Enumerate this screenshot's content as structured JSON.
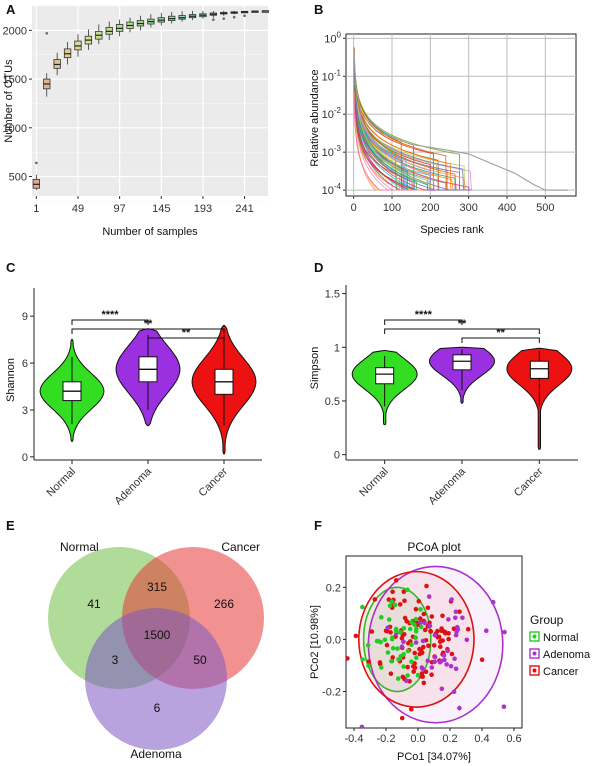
{
  "chart_data": [
    {
      "panel": "A",
      "type": "box",
      "xlabel": "Number of samples",
      "ylabel": "Number of OTUs",
      "xticks": [
        "1",
        "49",
        "97",
        "145",
        "193",
        "241"
      ],
      "yticks": [
        500,
        1000,
        1500,
        2000
      ],
      "ylim": [
        300,
        2250
      ],
      "grid": true,
      "x": [
        1,
        13,
        25,
        37,
        49,
        61,
        73,
        85,
        97,
        109,
        121,
        133,
        145,
        157,
        169,
        181,
        193,
        205,
        217,
        229,
        241,
        253,
        265
      ],
      "median": [
        420,
        1450,
        1650,
        1760,
        1840,
        1900,
        1950,
        1990,
        2020,
        2050,
        2070,
        2090,
        2105,
        2120,
        2130,
        2145,
        2155,
        2165,
        2175,
        2182,
        2190,
        2196,
        2200
      ],
      "q1": [
        380,
        1400,
        1610,
        1720,
        1800,
        1860,
        1910,
        1960,
        1990,
        2020,
        2045,
        2065,
        2085,
        2100,
        2115,
        2130,
        2140,
        2155,
        2168,
        2177,
        2186,
        2193,
        2200
      ],
      "q3": [
        470,
        1500,
        1700,
        1810,
        1890,
        1940,
        1990,
        2030,
        2060,
        2085,
        2100,
        2115,
        2130,
        2145,
        2152,
        2162,
        2170,
        2178,
        2185,
        2190,
        2195,
        2199,
        2200
      ],
      "min": [
        360,
        1320,
        1540,
        1650,
        1730,
        1800,
        1860,
        1900,
        1940,
        1980,
        2000,
        2030,
        2050,
        2070,
        2090,
        2105,
        2120,
        2130,
        2150,
        2165,
        2175,
        2188,
        2200
      ],
      "max": [
        520,
        1560,
        1770,
        1880,
        1960,
        2010,
        2060,
        2090,
        2110,
        2130,
        2150,
        2165,
        2180,
        2190,
        2195,
        2200,
        2200,
        2200,
        2200,
        2200,
        2200,
        2200,
        2200
      ],
      "outliers": [
        [
          13,
          1970
        ],
        [
          1,
          640
        ],
        [
          205,
          2110
        ],
        [
          217,
          2120
        ],
        [
          229,
          2135
        ],
        [
          241,
          2150
        ]
      ]
    },
    {
      "panel": "B",
      "type": "line",
      "xlabel": "Species rank",
      "ylabel": "Relative abundance",
      "xticks": [
        0,
        100,
        200,
        300,
        400,
        500
      ],
      "yticks": [
        "10^-4",
        "10^-3",
        "10^-2",
        "10^-1",
        "10^0"
      ],
      "xlim": [
        -20,
        580
      ],
      "ylim": [
        7e-05,
        1.3
      ],
      "yscale": "log",
      "grid": true
    },
    {
      "panel": "C",
      "type": "violin",
      "ylabel": "Shannon",
      "categories": [
        "Normal",
        "Adenoma",
        "Cancer"
      ],
      "yticks": [
        0,
        3,
        6,
        9
      ],
      "ylim": [
        -0.2,
        10.8
      ],
      "colors": [
        "#33dd22",
        "#9b30e0",
        "#ee1111"
      ],
      "median": [
        4.2,
        5.6,
        4.8
      ],
      "q1": [
        3.6,
        4.8,
        4.0
      ],
      "q3": [
        4.8,
        6.4,
        5.6
      ],
      "whisker_low": [
        2.1,
        3.0,
        2.0
      ],
      "whisker_high": [
        6.4,
        7.8,
        7.8
      ],
      "range": [
        [
          1.0,
          7.5
        ],
        [
          2.0,
          8.2
        ],
        [
          0.2,
          8.4
        ]
      ],
      "significance": [
        {
          "pair": [
            "Normal",
            "Adenoma"
          ],
          "label": "****"
        },
        {
          "pair": [
            "Normal",
            "Cancer"
          ],
          "label": "**"
        },
        {
          "pair": [
            "Adenoma",
            "Cancer"
          ],
          "label": "**"
        }
      ]
    },
    {
      "panel": "D",
      "type": "violin",
      "ylabel": "Simpson",
      "categories": [
        "Normal",
        "Adenoma",
        "Cancer"
      ],
      "yticks": [
        0,
        0.5,
        1.0,
        1.5
      ],
      "ylim": [
        -0.05,
        1.58
      ],
      "colors": [
        "#33dd22",
        "#9b30e0",
        "#ee1111"
      ],
      "median": [
        0.75,
        0.87,
        0.8
      ],
      "q1": [
        0.66,
        0.79,
        0.71
      ],
      "q3": [
        0.81,
        0.93,
        0.87
      ],
      "whisker_low": [
        0.45,
        0.6,
        0.45
      ],
      "whisker_high": [
        0.92,
        0.98,
        0.97
      ],
      "range": [
        [
          0.28,
          0.97
        ],
        [
          0.48,
          1.0
        ],
        [
          0.05,
          0.99
        ]
      ],
      "significance": [
        {
          "pair": [
            "Normal",
            "Adenoma"
          ],
          "label": "****"
        },
        {
          "pair": [
            "Normal",
            "Cancer"
          ],
          "label": "**"
        },
        {
          "pair": [
            "Adenoma",
            "Cancer"
          ],
          "label": "**"
        }
      ]
    },
    {
      "panel": "E",
      "type": "venn",
      "sets": [
        {
          "name": "Normal",
          "color": "#6fbe44"
        },
        {
          "name": "Cancer",
          "color": "#e53935"
        },
        {
          "name": "Adenoma",
          "color": "#7e57c2"
        }
      ],
      "regions": {
        "normal_only": 41,
        "cancer_only": 266,
        "adenoma_only": 6,
        "normal_cancer": 315,
        "normal_adenoma": 3,
        "cancer_adenoma": 50,
        "all": 1500
      }
    },
    {
      "panel": "F",
      "type": "scatter",
      "title": "PCoA plot",
      "xlabel": "PCo1 [34.07%]",
      "ylabel": "PCo2 [10.98%]",
      "xticks": [
        -0.4,
        -0.2,
        0.0,
        0.2,
        0.4,
        0.6
      ],
      "yticks": [
        -0.2,
        0.0,
        0.2
      ],
      "xlim": [
        -0.45,
        0.65
      ],
      "ylim": [
        -0.34,
        0.32
      ],
      "legend_title": "Group",
      "legend_position": "right",
      "series": [
        {
          "name": "Normal",
          "color": "#22cc22",
          "center": [
            -0.13,
            0.0
          ],
          "ellipse_radii": [
            0.21,
            0.2
          ]
        },
        {
          "name": "Adenoma",
          "color": "#aa33cc",
          "center": [
            0.11,
            -0.02
          ],
          "ellipse_radii": [
            0.42,
            0.3
          ]
        },
        {
          "name": "Cancer",
          "color": "#dd1111",
          "center": [
            -0.01,
            0.0
          ],
          "ellipse_radii": [
            0.36,
            0.26
          ]
        }
      ]
    }
  ]
}
